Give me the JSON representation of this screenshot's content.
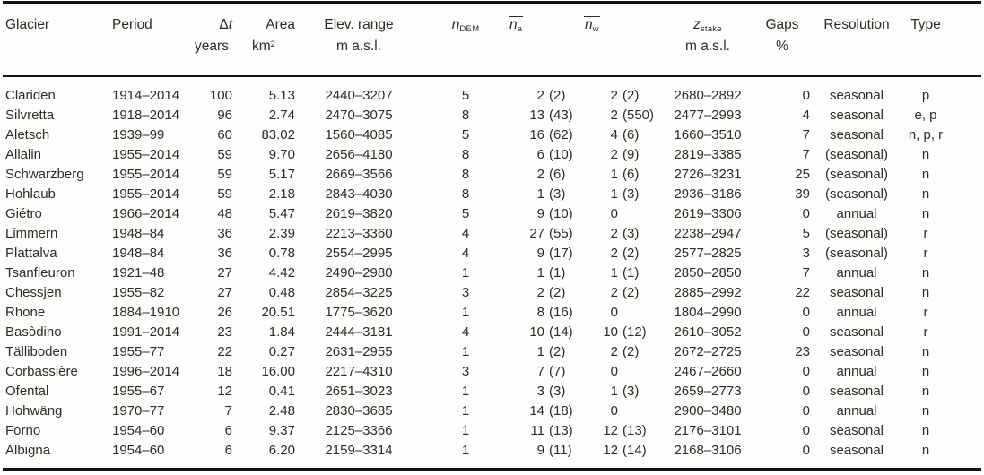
{
  "page": {
    "background": "#fdfdfc",
    "text_color": "#2d2d27",
    "rule_color": "#141414"
  },
  "table": {
    "headers": {
      "glacier": "Glacier",
      "period": "Period",
      "dt_symbol": "Δ",
      "dt_var": "t",
      "dt_unit": "years",
      "area": "Area",
      "area_unit_base": "km",
      "area_unit_sup": "2",
      "elev": "Elev. range",
      "elev_unit": "m a.s.l.",
      "ndem_base": "n",
      "ndem_sub": "DEM",
      "na_base": "n",
      "na_sub": "a",
      "nw_base": "n",
      "nw_sub": "w",
      "zstake_base": "z",
      "zstake_sub": "stake",
      "zstake_unit": "m a.s.l.",
      "gaps": "Gaps",
      "gaps_unit": "%",
      "resolution": "Resolution",
      "type": "Type"
    },
    "rows": [
      {
        "glacier": "Clariden",
        "period": "1914–2014",
        "dt": "100",
        "area": "5.13",
        "elev_range": "2440–3207",
        "n_dem": "5",
        "n_a": "2 (2)",
        "n_w": "2 (2)",
        "z_stake": "2680–2892",
        "gaps": "0",
        "resolution": "seasonal",
        "type": "p"
      },
      {
        "glacier": "Silvretta",
        "period": "1918–2014",
        "dt": "96",
        "area": "2.74",
        "elev_range": "2470–3075",
        "n_dem": "8",
        "n_a": "13 (43)",
        "n_w": "2 (550)",
        "z_stake": "2477–2993",
        "gaps": "4",
        "resolution": "seasonal",
        "type": "e, p"
      },
      {
        "glacier": "Aletsch",
        "period": "1939–99",
        "dt": "60",
        "area": "83.02",
        "elev_range": "1560–4085",
        "n_dem": "5",
        "n_a": "16 (62)",
        "n_w": "4 (6)",
        "z_stake": "1660–3510",
        "gaps": "7",
        "resolution": "seasonal",
        "type": "n, p, r"
      },
      {
        "glacier": "Allalin",
        "period": "1955–2014",
        "dt": "59",
        "area": "9.70",
        "elev_range": "2656–4180",
        "n_dem": "8",
        "n_a": "6 (10)",
        "n_w": "2 (9)",
        "z_stake": "2819–3385",
        "gaps": "7",
        "resolution": "(seasonal)",
        "type": "n"
      },
      {
        "glacier": "Schwarzberg",
        "period": "1955–2014",
        "dt": "59",
        "area": "5.17",
        "elev_range": "2669–3566",
        "n_dem": "8",
        "n_a": "2 (6)",
        "n_w": "1 (6)",
        "z_stake": "2726–3231",
        "gaps": "25",
        "resolution": "(seasonal)",
        "type": "n"
      },
      {
        "glacier": "Hohlaub",
        "period": "1955–2014",
        "dt": "59",
        "area": "2.18",
        "elev_range": "2843–4030",
        "n_dem": "8",
        "n_a": "1 (3)",
        "n_w": "1 (3)",
        "z_stake": "2936–3186",
        "gaps": "39",
        "resolution": "(seasonal)",
        "type": "n"
      },
      {
        "glacier": "Giétro",
        "period": "1966–2014",
        "dt": "48",
        "area": "5.47",
        "elev_range": "2619–3820",
        "n_dem": "5",
        "n_a": "9 (10)",
        "n_w": "0",
        "z_stake": "2619–3306",
        "gaps": "0",
        "resolution": "annual",
        "type": "n"
      },
      {
        "glacier": "Limmern",
        "period": "1948–84",
        "dt": "36",
        "area": "2.39",
        "elev_range": "2213–3360",
        "n_dem": "4",
        "n_a": "27 (55)",
        "n_w": "2 (3)",
        "z_stake": "2238–2947",
        "gaps": "5",
        "resolution": "(seasonal)",
        "type": "r"
      },
      {
        "glacier": "Plattalva",
        "period": "1948–84",
        "dt": "36",
        "area": "0.78",
        "elev_range": "2554–2995",
        "n_dem": "4",
        "n_a": "9 (17)",
        "n_w": "2 (2)",
        "z_stake": "2577–2825",
        "gaps": "3",
        "resolution": "(seasonal)",
        "type": "r"
      },
      {
        "glacier": "Tsanfleuron",
        "period": "1921–48",
        "dt": "27",
        "area": "4.42",
        "elev_range": "2490–2980",
        "n_dem": "1",
        "n_a": "1 (1)",
        "n_w": "1 (1)",
        "z_stake": "2850–2850",
        "gaps": "7",
        "resolution": "annual",
        "type": "n"
      },
      {
        "glacier": "Chessjen",
        "period": "1955–82",
        "dt": "27",
        "area": "0.48",
        "elev_range": "2854–3225",
        "n_dem": "3",
        "n_a": "2 (2)",
        "n_w": "2 (2)",
        "z_stake": "2885–2992",
        "gaps": "22",
        "resolution": "seasonal",
        "type": "n"
      },
      {
        "glacier": "Rhone",
        "period": "1884–1910",
        "dt": "26",
        "area": "20.51",
        "elev_range": "1775–3620",
        "n_dem": "1",
        "n_a": "8 (16)",
        "n_w": "0",
        "z_stake": "1804–2990",
        "gaps": "0",
        "resolution": "annual",
        "type": "r"
      },
      {
        "glacier": "Basòdino",
        "period": "1991–2014",
        "dt": "23",
        "area": "1.84",
        "elev_range": "2444–3181",
        "n_dem": "4",
        "n_a": "10 (14)",
        "n_w": "10 (12)",
        "z_stake": "2610–3052",
        "gaps": "0",
        "resolution": "seasonal",
        "type": "r"
      },
      {
        "glacier": "Tälliboden",
        "period": "1955–77",
        "dt": "22",
        "area": "0.27",
        "elev_range": "2631–2955",
        "n_dem": "1",
        "n_a": "1 (2)",
        "n_w": "2 (2)",
        "z_stake": "2672–2725",
        "gaps": "23",
        "resolution": "seasonal",
        "type": "n"
      },
      {
        "glacier": "Corbassière",
        "period": "1996–2014",
        "dt": "18",
        "area": "16.00",
        "elev_range": "2217–4310",
        "n_dem": "3",
        "n_a": "7 (7)",
        "n_w": "0",
        "z_stake": "2467–2660",
        "gaps": "0",
        "resolution": "annual",
        "type": "n"
      },
      {
        "glacier": "Ofental",
        "period": "1955–67",
        "dt": "12",
        "area": "0.41",
        "elev_range": "2651–3023",
        "n_dem": "1",
        "n_a": "3 (3)",
        "n_w": "1 (3)",
        "z_stake": "2659–2773",
        "gaps": "0",
        "resolution": "seasonal",
        "type": "n"
      },
      {
        "glacier": "Hohwäng",
        "period": "1970–77",
        "dt": "7",
        "area": "2.48",
        "elev_range": "2830–3685",
        "n_dem": "1",
        "n_a": "14 (18)",
        "n_w": "0",
        "z_stake": "2900–3480",
        "gaps": "0",
        "resolution": "annual",
        "type": "n"
      },
      {
        "glacier": "Forno",
        "period": "1954–60",
        "dt": "6",
        "area": "9.37",
        "elev_range": "2125–3366",
        "n_dem": "1",
        "n_a": "11 (13)",
        "n_w": "12 (13)",
        "z_stake": "2176–3101",
        "gaps": "0",
        "resolution": "seasonal",
        "type": "n"
      },
      {
        "glacier": "Albigna",
        "period": "1954–60",
        "dt": "6",
        "area": "6.20",
        "elev_range": "2159–3314",
        "n_dem": "1",
        "n_a": "9 (11)",
        "n_w": "12 (14)",
        "z_stake": "2168–3106",
        "gaps": "0",
        "resolution": "seasonal",
        "type": "n"
      }
    ]
  }
}
